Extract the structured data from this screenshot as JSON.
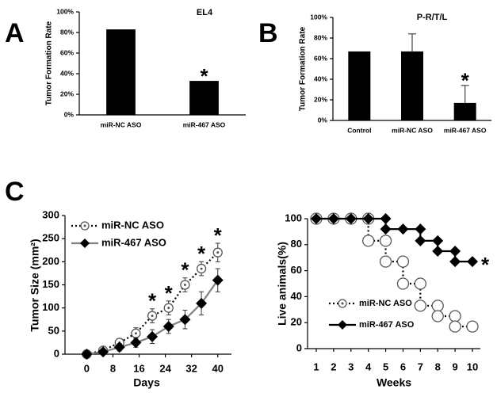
{
  "panel_labels": [
    "A",
    "B",
    "C"
  ],
  "chart_data": [
    {
      "type": "bar",
      "title": "EL4",
      "y_label": "Tumor Formation Rate",
      "categories": [
        "miR-NC ASO",
        "miR-467 ASO"
      ],
      "values": [
        83,
        33
      ],
      "color": "#000000",
      "ylim": [
        0,
        100
      ],
      "yticks": [
        {
          "value": 0,
          "label": "0%"
        },
        {
          "value": 20,
          "label": "20%"
        },
        {
          "value": 40,
          "label": "40%"
        },
        {
          "value": 60,
          "label": "60%"
        },
        {
          "value": 80,
          "label": "80%"
        },
        {
          "value": 100,
          "label": "100%"
        }
      ],
      "significance": {
        "label": "*",
        "categories": [
          "miR-467 ASO"
        ]
      }
    },
    {
      "type": "bar",
      "title": "P-R/T/L",
      "y_label": "Tumor Formation Rate",
      "categories": [
        "Control",
        "miR-NC ASO",
        "miR-467 ASO"
      ],
      "values": [
        67,
        67,
        17
      ],
      "errors": [
        null,
        17,
        17
      ],
      "color": "#000000",
      "ylim": [
        0,
        100
      ],
      "yticks": [
        {
          "value": 0,
          "label": "0%"
        },
        {
          "value": 20,
          "label": "20%"
        },
        {
          "value": 40,
          "label": "40%"
        },
        {
          "value": 60,
          "label": "60%"
        },
        {
          "value": 80,
          "label": "80%"
        },
        {
          "value": 100,
          "label": "100%"
        }
      ],
      "significance": {
        "label": "*",
        "categories": [
          "miR-467 ASO"
        ]
      }
    },
    {
      "type": "line",
      "x_label": "Days",
      "y_label": "Tumor Size (mm²)",
      "x": [
        0,
        5,
        10,
        15,
        20,
        25,
        30,
        35,
        40
      ],
      "xlim": [
        -3,
        42
      ],
      "xticks": [
        0,
        8,
        16,
        24,
        32,
        40
      ],
      "ylim": [
        0,
        300
      ],
      "yticks": [
        0,
        50,
        100,
        150,
        200,
        250,
        300
      ],
      "series": [
        {
          "name": "miR-NC ASO",
          "color": "#000000",
          "line": "dotted",
          "marker": "circle-dot",
          "values": [
            0,
            8,
            25,
            45,
            83,
            100,
            150,
            185,
            220
          ],
          "errors": [
            0,
            5,
            8,
            12,
            15,
            15,
            15,
            15,
            20
          ]
        },
        {
          "name": "miR-467 ASO",
          "color": "#808080",
          "line": "solid",
          "marker": "diamond",
          "values": [
            0,
            5,
            15,
            25,
            38,
            60,
            75,
            110,
            160
          ],
          "errors": [
            0,
            3,
            8,
            10,
            15,
            15,
            20,
            25,
            25
          ]
        }
      ],
      "significance": {
        "label": "*",
        "series": "miR-NC ASO",
        "x": [
          20,
          25,
          30,
          35,
          40
        ]
      }
    },
    {
      "type": "line",
      "x_label": "Weeks",
      "y_label": "Live animals(%)",
      "xlim": [
        1,
        10
      ],
      "xticks": [
        1,
        2,
        3,
        4,
        5,
        6,
        7,
        8,
        9,
        10
      ],
      "ylim": [
        0,
        100
      ],
      "yticks": [
        0,
        20,
        40,
        60,
        80,
        100
      ],
      "series": [
        {
          "name": "miR-NC ASO",
          "color": "#000000",
          "line": "dotted",
          "marker": "circle-open",
          "x": [
            1,
            2,
            3,
            4,
            4,
            5,
            5,
            6,
            6,
            7,
            7,
            8,
            8,
            9,
            9,
            10
          ],
          "values": [
            100,
            100,
            100,
            100,
            83,
            83,
            67,
            67,
            50,
            50,
            33,
            33,
            25,
            25,
            17,
            17
          ]
        },
        {
          "name": "miR-467 ASO",
          "color": "#000000",
          "line": "solid",
          "marker": "diamond",
          "x": [
            1,
            2,
            3,
            4,
            5,
            5,
            6,
            7,
            7,
            8,
            8,
            9,
            9,
            10
          ],
          "values": [
            100,
            100,
            100,
            100,
            100,
            92,
            92,
            92,
            83,
            83,
            75,
            75,
            67,
            67
          ]
        }
      ],
      "significance": {
        "label": "*",
        "series": "miR-467 ASO"
      }
    }
  ]
}
